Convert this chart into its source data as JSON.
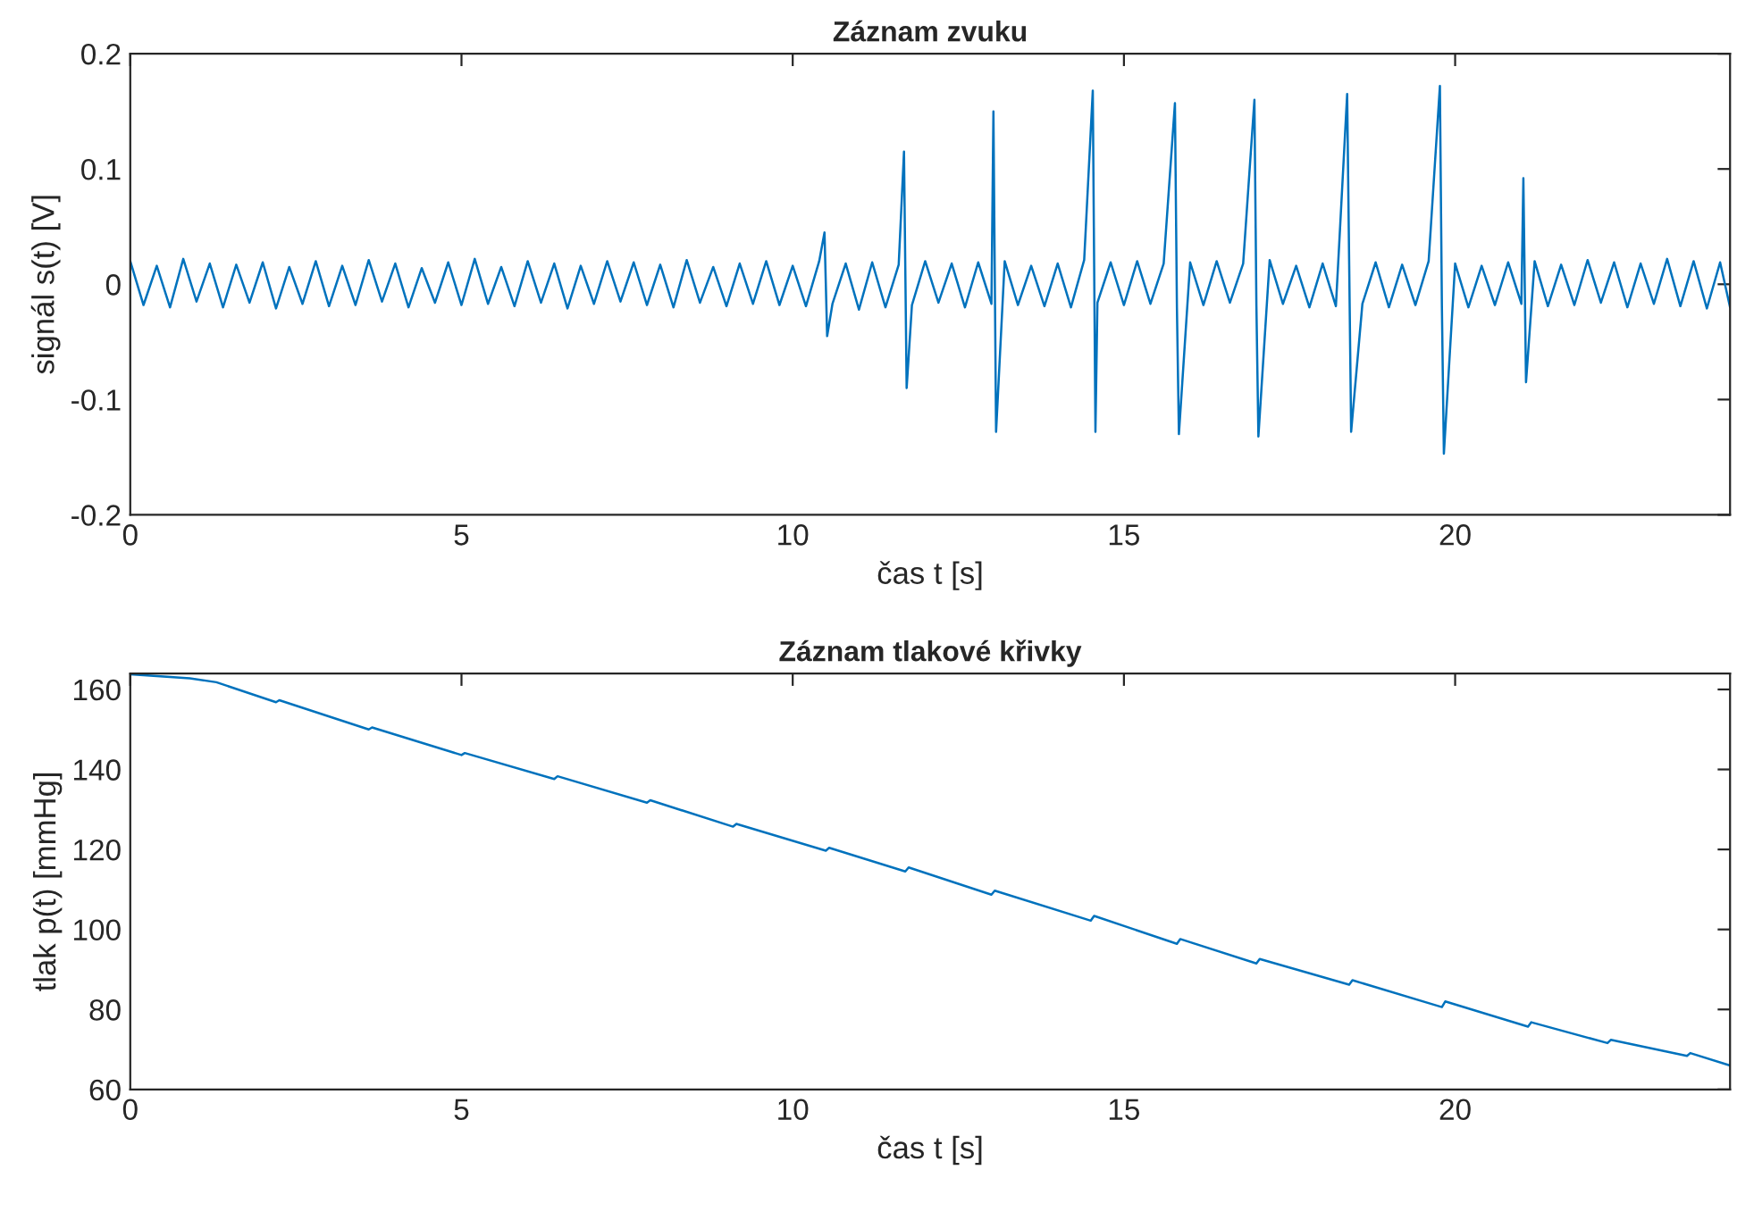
{
  "chart_data": [
    {
      "type": "line",
      "title": "Záznam zvuku",
      "xlabel": "čas t [s]",
      "ylabel": "signál s(t) [V]",
      "xlim": [
        0,
        24.15
      ],
      "xticks": [
        0,
        5,
        10,
        15,
        20
      ],
      "ylim": [
        -0.2,
        0.2
      ],
      "yticks": [
        -0.2,
        -0.1,
        0,
        0.1,
        0.2
      ],
      "series": [
        {
          "color": "#0072bd",
          "x": [
            0.0,
            0.2,
            0.4,
            0.6,
            0.8,
            1.0,
            1.2,
            1.4,
            1.6,
            1.8,
            2.0,
            2.2,
            2.4,
            2.6,
            2.8,
            3.0,
            3.2,
            3.4,
            3.6,
            3.8,
            4.0,
            4.2,
            4.4,
            4.6,
            4.8,
            5.0,
            5.2,
            5.4,
            5.6,
            5.8,
            6.0,
            6.2,
            6.4,
            6.6,
            6.8,
            7.0,
            7.2,
            7.4,
            7.6,
            7.8,
            8.0,
            8.2,
            8.4,
            8.6,
            8.8,
            9.0,
            9.2,
            9.4,
            9.6,
            9.8,
            10.0,
            10.2,
            10.4,
            10.48,
            10.52,
            10.6,
            10.8,
            11.0,
            11.2,
            11.4,
            11.6,
            11.68,
            11.72,
            11.8,
            12.0,
            12.2,
            12.4,
            12.6,
            12.8,
            13.0,
            13.03,
            13.07,
            13.2,
            13.4,
            13.6,
            13.8,
            14.0,
            14.2,
            14.4,
            14.53,
            14.57,
            14.6,
            14.8,
            15.0,
            15.2,
            15.4,
            15.6,
            15.77,
            15.8,
            15.83,
            16.0,
            16.2,
            16.4,
            16.6,
            16.8,
            16.97,
            17.0,
            17.03,
            17.2,
            17.4,
            17.6,
            17.8,
            18.0,
            18.2,
            18.37,
            18.4,
            18.43,
            18.6,
            18.8,
            19.0,
            19.2,
            19.4,
            19.6,
            19.77,
            19.8,
            19.83,
            20.0,
            20.2,
            20.4,
            20.6,
            20.8,
            21.0,
            21.03,
            21.07,
            21.2,
            21.4,
            21.6,
            21.8,
            22.0,
            22.2,
            22.4,
            22.6,
            22.8,
            23.0,
            23.2,
            23.4,
            23.6,
            23.8,
            24.0,
            24.15
          ],
          "values": [
            0.02,
            -0.018,
            0.016,
            -0.02,
            0.022,
            -0.015,
            0.018,
            -0.02,
            0.017,
            -0.016,
            0.019,
            -0.021,
            0.015,
            -0.017,
            0.02,
            -0.019,
            0.016,
            -0.018,
            0.021,
            -0.015,
            0.018,
            -0.02,
            0.014,
            -0.016,
            0.019,
            -0.018,
            0.022,
            -0.017,
            0.015,
            -0.019,
            0.02,
            -0.016,
            0.018,
            -0.021,
            0.016,
            -0.017,
            0.02,
            -0.015,
            0.019,
            -0.018,
            0.017,
            -0.02,
            0.021,
            -0.016,
            0.015,
            -0.019,
            0.018,
            -0.017,
            0.02,
            -0.018,
            0.016,
            -0.019,
            0.02,
            0.045,
            -0.045,
            -0.017,
            0.018,
            -0.022,
            0.019,
            -0.02,
            0.017,
            0.115,
            -0.09,
            -0.018,
            0.02,
            -0.016,
            0.018,
            -0.02,
            0.019,
            -0.017,
            0.15,
            -0.128,
            0.02,
            -0.018,
            0.016,
            -0.019,
            0.018,
            -0.02,
            0.021,
            0.168,
            -0.128,
            -0.016,
            0.019,
            -0.018,
            0.02,
            -0.017,
            0.018,
            0.157,
            -0.02,
            -0.13,
            0.019,
            -0.018,
            0.02,
            -0.016,
            0.018,
            0.16,
            -0.019,
            -0.132,
            0.021,
            -0.017,
            0.016,
            -0.02,
            0.018,
            -0.019,
            0.165,
            0.02,
            -0.128,
            -0.017,
            0.019,
            -0.02,
            0.017,
            -0.018,
            0.02,
            0.172,
            -0.019,
            -0.147,
            0.018,
            -0.02,
            0.016,
            -0.018,
            0.019,
            -0.017,
            0.092,
            -0.085,
            0.02,
            -0.019,
            0.017,
            -0.018,
            0.021,
            -0.016,
            0.019,
            -0.02,
            0.018,
            -0.017,
            0.022,
            -0.019,
            0.02,
            -0.021,
            0.019,
            -0.02
          ]
        }
      ]
    },
    {
      "type": "line",
      "title": "Záznam tlakové křivky",
      "xlabel": "čas t [s]",
      "ylabel": "tlak p(t) [mmHg]",
      "xlim": [
        0,
        24.15
      ],
      "xticks": [
        0,
        5,
        10,
        15,
        20
      ],
      "ylim": [
        60,
        164
      ],
      "yticks": [
        60,
        80,
        100,
        120,
        140,
        160
      ],
      "series": [
        {
          "color": "#0072bd",
          "x": [
            0.0,
            0.9,
            1.3,
            2.2,
            2.25,
            3.6,
            3.65,
            5.0,
            5.05,
            6.4,
            6.45,
            7.8,
            7.85,
            9.1,
            9.15,
            10.5,
            10.55,
            11.7,
            11.75,
            13.0,
            13.05,
            14.5,
            14.55,
            15.8,
            15.85,
            17.0,
            17.05,
            18.4,
            18.45,
            19.8,
            19.85,
            21.1,
            21.15,
            22.3,
            22.35,
            23.5,
            23.55,
            24.15
          ],
          "values": [
            163.8,
            162.8,
            161.8,
            156.8,
            157.3,
            150.0,
            150.5,
            143.6,
            144.1,
            137.6,
            138.3,
            131.7,
            132.3,
            125.7,
            126.4,
            119.7,
            120.4,
            114.5,
            115.5,
            108.7,
            109.7,
            102.2,
            103.4,
            96.4,
            97.6,
            91.5,
            92.6,
            86.2,
            87.3,
            80.6,
            82.0,
            75.7,
            76.8,
            71.6,
            72.4,
            68.4,
            69.1,
            66.0
          ]
        }
      ]
    }
  ]
}
